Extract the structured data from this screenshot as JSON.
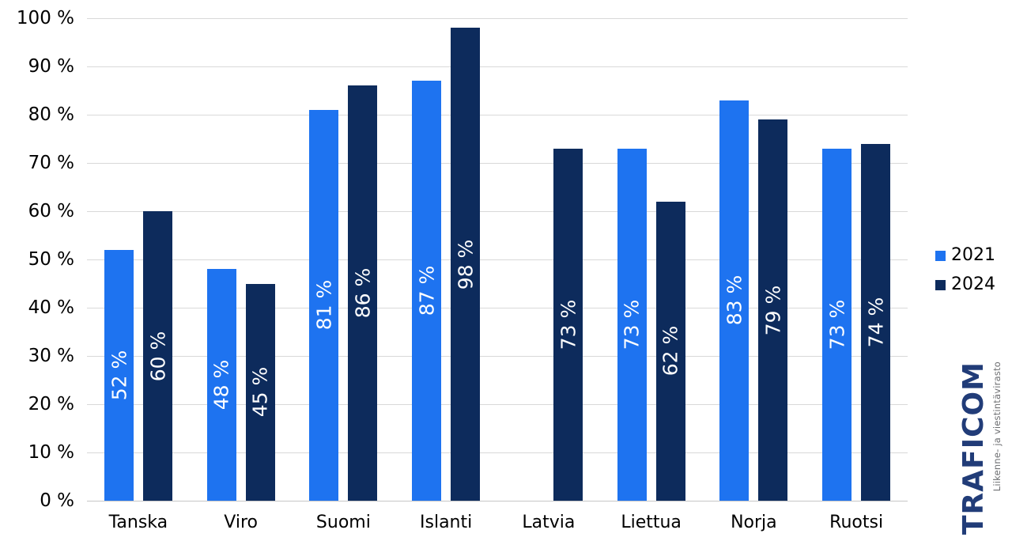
{
  "chart_data": {
    "type": "bar",
    "categories": [
      "Tanska",
      "Viro",
      "Suomi",
      "Islanti",
      "Latvia",
      "Liettua",
      "Norja",
      "Ruotsi"
    ],
    "series": [
      {
        "name": "2021",
        "color": "#1E73F0",
        "values": [
          52,
          48,
          81,
          87,
          null,
          73,
          83,
          73
        ],
        "labels": [
          "52 %",
          "48 %",
          "81 %",
          "87 %",
          null,
          "73 %",
          "83 %",
          "73 %"
        ]
      },
      {
        "name": "2024",
        "color": "#0D2B5C",
        "values": [
          60,
          45,
          86,
          98,
          73,
          62,
          79,
          74
        ],
        "labels": [
          "60 %",
          "45 %",
          "86 %",
          "98 %",
          "73 %",
          "62 %",
          "79 %",
          "74 %"
        ]
      }
    ],
    "y_ticks": [
      "0 %",
      "10 %",
      "20 %",
      "30 %",
      "40 %",
      "50 %",
      "60 %",
      "70 %",
      "80 %",
      "90 %",
      "100 %"
    ],
    "ylim": [
      0,
      100
    ],
    "grid": true,
    "legend_position": "right",
    "value_labels": "vertical, white, centered inside bars"
  },
  "legend": {
    "items": [
      "2021",
      "2024"
    ]
  },
  "logo": {
    "brand": "TRAFICOM",
    "subtitle": "Liikenne- ja viestintävirasto",
    "brand_color": "#213C78",
    "subtitle_color": "#6E6F72"
  },
  "colors": {
    "background": "#FFFFFF",
    "gridline": "#D9D9D9",
    "axis_text": "#000000",
    "bar_label_text": "#FFFFFF"
  }
}
